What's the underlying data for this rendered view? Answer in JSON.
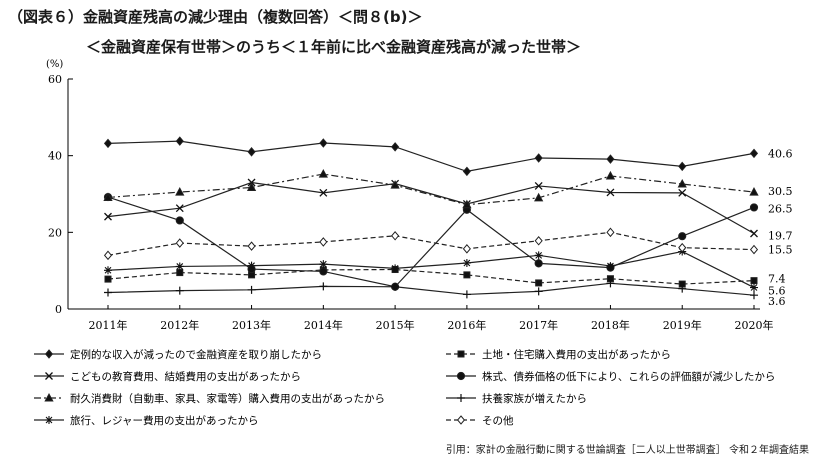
{
  "title_line1": "（図表６）金融資産残高の減少理由（複数回答）＜問８(b)＞",
  "title_line2": "＜金融資産保有世帯＞のうち＜１年前に比べ金融資産残高が減った世帯＞",
  "source": "引用：家計の金融行動に関する世論調査［二人以上世帯調査］ 令和２年調査結果",
  "chart_data": {
    "type": "line",
    "ylabel": "(%)",
    "ylim": [
      0,
      60
    ],
    "yticks": [
      0,
      20,
      40,
      60
    ],
    "grid": false,
    "legend_position": "bottom",
    "categories": [
      "2011年",
      "2012年",
      "2013年",
      "2014年",
      "2015年",
      "2016年",
      "2017年",
      "2018年",
      "2019年",
      "2020年"
    ],
    "series": [
      {
        "name": "定例的な収入が減ったので金融資産を取り崩したから",
        "marker": "diamond",
        "dash": "solid",
        "values": [
          43.2,
          43.8,
          41.0,
          43.3,
          42.3,
          35.9,
          39.4,
          39.1,
          37.2,
          40.6
        ],
        "label": "40.6"
      },
      {
        "name": "土地・住宅購入費用の支出があったから",
        "marker": "square",
        "dash": "dashed",
        "values": [
          7.8,
          9.5,
          8.9,
          10.2,
          10.3,
          8.9,
          6.8,
          7.9,
          6.5,
          7.4
        ],
        "label": "7.4"
      },
      {
        "name": "こどもの教育費用、結婚費用の支出があったから",
        "marker": "cross",
        "dash": "solid",
        "values": [
          24.1,
          26.3,
          33.0,
          30.3,
          32.7,
          27.4,
          32.1,
          30.4,
          30.3,
          19.7
        ],
        "label": "19.7"
      },
      {
        "name": "株式、債券価格の低下により、これらの評価額が減少したから",
        "marker": "circle",
        "dash": "solid",
        "values": [
          29.2,
          23.1,
          10.4,
          9.8,
          5.8,
          25.9,
          11.9,
          10.8,
          19.0,
          26.5
        ],
        "label": "26.5"
      },
      {
        "name": "耐久消費財（自動車、家具、家電等）購入費用の支出があったから",
        "marker": "triangle",
        "dash": "dashdot",
        "values": [
          29.1,
          30.5,
          31.7,
          35.2,
          32.3,
          27.2,
          29.0,
          34.7,
          32.6,
          30.5
        ],
        "label": "30.5"
      },
      {
        "name": "扶養家族が増えたから",
        "marker": "plus",
        "dash": "solid",
        "values": [
          4.3,
          4.8,
          5.0,
          5.9,
          5.8,
          3.8,
          4.6,
          6.7,
          5.3,
          3.6
        ],
        "label": "3.6"
      },
      {
        "name": "旅行、レジャー費用の支出があったから",
        "marker": "asterisk",
        "dash": "solid",
        "values": [
          10.1,
          11.1,
          11.3,
          11.7,
          10.6,
          12.0,
          14.0,
          11.2,
          15.0,
          5.6
        ],
        "label": "5.6"
      },
      {
        "name": "その他",
        "marker": "open-diamond",
        "dash": "dashed",
        "values": [
          14.0,
          17.2,
          16.4,
          17.5,
          19.1,
          15.7,
          17.8,
          20.0,
          16.0,
          15.5
        ],
        "label": "15.5"
      }
    ]
  }
}
